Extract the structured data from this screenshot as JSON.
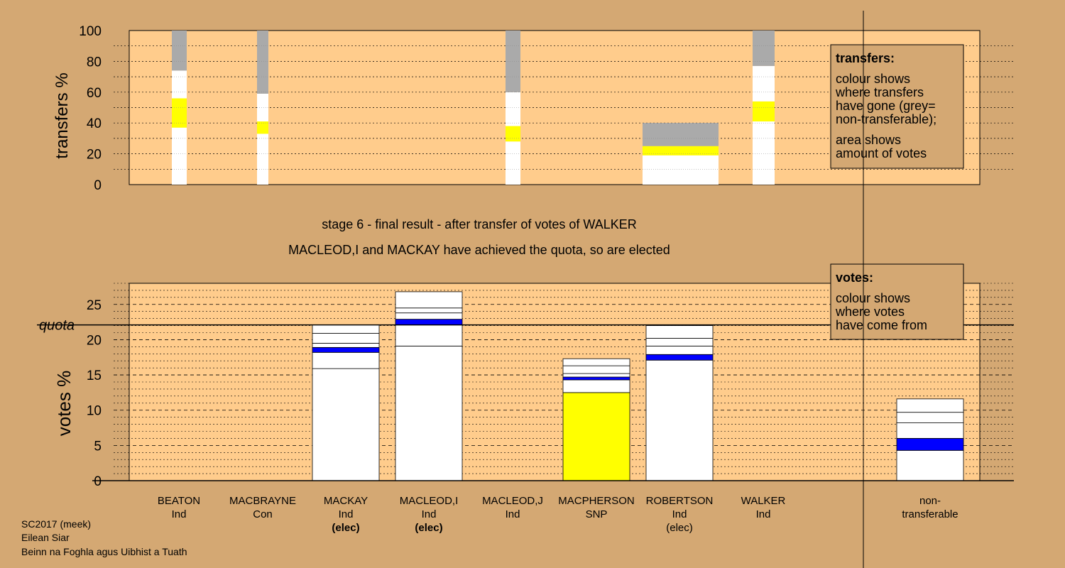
{
  "colors": {
    "background": "#d4a873",
    "plot": "#ffcc8c",
    "white": "#ffffff",
    "yellow": "#ffff00",
    "blue": "#0000ff",
    "grey": "#aaaaaa"
  },
  "stage_line": "stage 6 - final result - after transfer of votes of WALKER",
  "elected_line": "MACLEOD,I and MACKAY have achieved the quota, so are elected",
  "footer": [
    "SC2017 (meek)",
    "Eilean Siar",
    "Beinn na Foghla agus Uibhist a Tuath"
  ],
  "transfer_legend": {
    "title": "transfers:",
    "lines": [
      "colour shows",
      "where transfers",
      "have gone (grey=",
      "non-transferable);",
      "area shows",
      "amount of votes"
    ]
  },
  "votes_legend": {
    "title": "votes:",
    "lines": [
      "colour shows",
      "where votes",
      "have come from"
    ]
  },
  "quota_label": "quota",
  "chart_data": [
    {
      "type": "bar",
      "stacked": true,
      "ylabel": "transfers %",
      "ylim": [
        0,
        100
      ],
      "yticks": [
        0,
        20,
        40,
        60,
        80,
        100
      ],
      "columns": [
        {
          "segments": [
            {
              "color": "white",
              "value": 37
            },
            {
              "color": "yellow",
              "value": 19
            },
            {
              "color": "white",
              "value": 18
            },
            {
              "color": "grey",
              "value": 26
            }
          ]
        },
        {
          "segments": [
            {
              "color": "white",
              "value": 33
            },
            {
              "color": "yellow",
              "value": 8
            },
            {
              "color": "white",
              "value": 18
            },
            {
              "color": "grey",
              "value": 41
            }
          ]
        },
        {
          "segments": [
            {
              "color": "white",
              "value": 28
            },
            {
              "color": "yellow",
              "value": 10
            },
            {
              "color": "white",
              "value": 22
            },
            {
              "color": "grey",
              "value": 40
            }
          ]
        },
        {
          "segments": [
            {
              "color": "white",
              "value": 19
            },
            {
              "color": "yellow",
              "value": 6
            },
            {
              "color": "grey",
              "value": 15
            }
          ]
        },
        {
          "segments": [
            {
              "color": "white",
              "value": 41
            },
            {
              "color": "yellow",
              "value": 13
            },
            {
              "color": "white",
              "value": 23
            },
            {
              "color": "grey",
              "value": 23
            }
          ]
        }
      ]
    },
    {
      "type": "bar",
      "stacked": true,
      "ylabel": "votes %",
      "ylim": [
        0,
        28
      ],
      "yticks": [
        0,
        5,
        10,
        15,
        20,
        25
      ],
      "quota": 22.1,
      "candidates": [
        {
          "name": "BEATON",
          "party": "Ind",
          "status": "",
          "segments": []
        },
        {
          "name": "MACBRAYNE",
          "party": "Con",
          "status": "",
          "segments": []
        },
        {
          "name": "MACKAY",
          "party": "Ind",
          "status": "(elec)",
          "segments": [
            {
              "color": "white",
              "value": 15.9
            },
            {
              "color": "white",
              "value": 2.3
            },
            {
              "color": "blue",
              "value": 0.7
            },
            {
              "color": "white",
              "value": 0.6
            },
            {
              "color": "white",
              "value": 1.4
            },
            {
              "color": "white",
              "value": 1.2
            }
          ]
        },
        {
          "name": "MACLEOD,I",
          "party": "Ind",
          "status": "(elec)",
          "segments": [
            {
              "color": "white",
              "value": 19.1
            },
            {
              "color": "white",
              "value": 3.0
            },
            {
              "color": "blue",
              "value": 0.8
            },
            {
              "color": "white",
              "value": 0.9
            },
            {
              "color": "white",
              "value": 0.7
            },
            {
              "color": "white",
              "value": 2.3
            }
          ]
        },
        {
          "name": "MACLEOD,J",
          "party": "Ind",
          "status": "",
          "segments": []
        },
        {
          "name": "MACPHERSON",
          "party": "SNP",
          "status": "",
          "segments": [
            {
              "color": "yellow",
              "value": 12.5
            },
            {
              "color": "white",
              "value": 1.8
            },
            {
              "color": "blue",
              "value": 0.4
            },
            {
              "color": "white",
              "value": 0.5
            },
            {
              "color": "white",
              "value": 1.1
            },
            {
              "color": "white",
              "value": 1.0
            }
          ]
        },
        {
          "name": "ROBERTSON",
          "party": "Ind",
          "status": "(elec)",
          "segments": [
            {
              "color": "white",
              "value": 17.1
            },
            {
              "color": "blue",
              "value": 0.8
            },
            {
              "color": "white",
              "value": 1.2
            },
            {
              "color": "white",
              "value": 1.1
            },
            {
              "color": "white",
              "value": 1.8
            }
          ]
        },
        {
          "name": "WALKER",
          "party": "Ind",
          "status": "",
          "segments": []
        },
        {
          "name": "non-",
          "party": "transferable",
          "status": "",
          "segments": [
            {
              "color": "white",
              "value": 4.3
            },
            {
              "color": "blue",
              "value": 1.7
            },
            {
              "color": "white",
              "value": 2.2
            },
            {
              "color": "white",
              "value": 1.5
            },
            {
              "color": "white",
              "value": 1.9
            }
          ]
        }
      ]
    }
  ]
}
